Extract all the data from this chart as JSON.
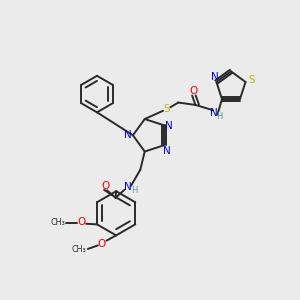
{
  "bg_color": "#ebebeb",
  "bond_color": "#2a2a2a",
  "colors": {
    "N": "#0000ee",
    "O": "#ee0000",
    "S": "#bbbb00",
    "C": "#2a2a2a",
    "H": "#5a9a9a"
  }
}
